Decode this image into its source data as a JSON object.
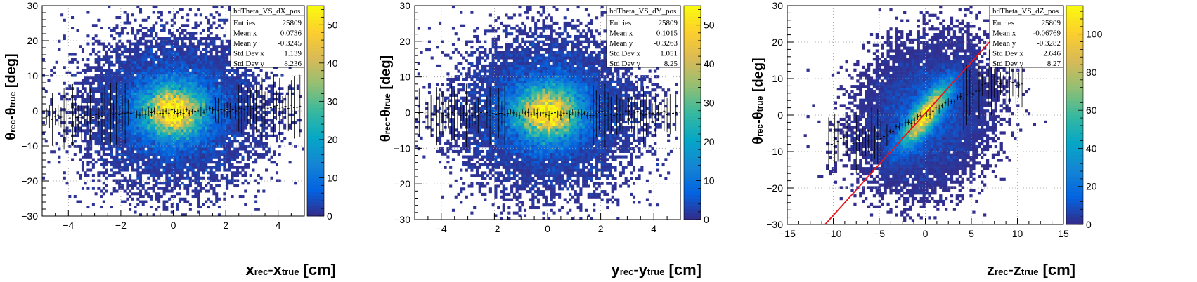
{
  "charts": [
    {
      "type": "heatmap",
      "stats": {
        "title": "hdTheta_VS_dX_pos",
        "rows": [
          {
            "label": "Entries",
            "value": "25809"
          },
          {
            "label": "Mean x",
            "value": "0.0736"
          },
          {
            "label": "Mean y",
            "value": "-0.3245"
          },
          {
            "label": "Std Dev x",
            "value": "1.139"
          },
          {
            "label": "Std Dev y",
            "value": "8.236"
          }
        ]
      },
      "xlabel": {
        "main": "x",
        "sub1": "rec",
        "mid": "-x",
        "sub2": "true",
        "unit": " [cm]"
      },
      "ylabel": {
        "main": "θ",
        "sub1": "rec",
        "mid": "-θ",
        "sub2": "true",
        "unit": " [deg]"
      },
      "xlim": [
        -5,
        5
      ],
      "ylim": [
        -30,
        30
      ],
      "xticks": [
        -4,
        -2,
        0,
        2,
        4
      ],
      "yticks": [
        -30,
        -20,
        -10,
        0,
        10,
        20,
        30
      ],
      "zmax": 55,
      "zticks": [
        0,
        10,
        20,
        30,
        40,
        50
      ],
      "profile": {
        "slope": 0.35,
        "intercept": -0.3
      },
      "fit_line": null
    },
    {
      "type": "heatmap",
      "stats": {
        "title": "hdTheta_VS_dY_pos",
        "rows": [
          {
            "label": "Entries",
            "value": "25809"
          },
          {
            "label": "Mean x",
            "value": "0.1015"
          },
          {
            "label": "Mean y",
            "value": "-0.3263"
          },
          {
            "label": "Std Dev x",
            "value": "1.051"
          },
          {
            "label": "Std Dev y",
            "value": "8.25"
          }
        ]
      },
      "xlabel": {
        "main": "y",
        "sub1": "rec",
        "mid": "-y",
        "sub2": "true",
        "unit": " [cm]"
      },
      "ylabel": {
        "main": "θ",
        "sub1": "rec",
        "mid": "-θ",
        "sub2": "true",
        "unit": " [deg]"
      },
      "xlim": [
        -5,
        5
      ],
      "ylim": [
        -30,
        30
      ],
      "xticks": [
        -4,
        -2,
        0,
        2,
        4
      ],
      "yticks": [
        -30,
        -20,
        -10,
        0,
        10,
        20,
        30
      ],
      "zmax": 55,
      "zticks": [
        0,
        10,
        20,
        30,
        40,
        50
      ],
      "profile": {
        "slope": 0.05,
        "intercept": -0.3
      },
      "fit_line": null
    },
    {
      "type": "heatmap",
      "stats": {
        "title": "hdTheta_VS_dZ_pos",
        "rows": [
          {
            "label": "Entries",
            "value": "25809"
          },
          {
            "label": "Mean x",
            "value": "-0.06769"
          },
          {
            "label": "Mean y",
            "value": "-0.3282"
          },
          {
            "label": "Std Dev x",
            "value": "2.646"
          },
          {
            "label": "Std Dev y",
            "value": "8.27"
          }
        ]
      },
      "xlabel": {
        "main": "z",
        "sub1": "rec",
        "mid": "-z",
        "sub2": "true",
        "unit": " [cm]"
      },
      "ylabel": {
        "main": "θ",
        "sub1": "rec",
        "mid": "-θ",
        "sub2": "true",
        "unit": " [deg]"
      },
      "xlim": [
        -15,
        15
      ],
      "ylim": [
        -30,
        30
      ],
      "xticks": [
        -15,
        -10,
        -5,
        0,
        5,
        10,
        15
      ],
      "yticks": [
        -30,
        -20,
        -10,
        0,
        10,
        20,
        30
      ],
      "zmax": 115,
      "zticks": [
        0,
        20,
        40,
        60,
        80,
        100
      ],
      "profile": {
        "slope": 1.2,
        "intercept": 0
      },
      "fit_line": {
        "slope": 2.8,
        "intercept": 0.5,
        "color": "#e8141e"
      }
    }
  ],
  "colors": {
    "palette": [
      "#352a87",
      "#0363e1",
      "#1485d4",
      "#06a7c6",
      "#38b99e",
      "#92bf73",
      "#d9ba56",
      "#fcce2e",
      "#f9fb0e"
    ],
    "grid": "#9a9a9a"
  }
}
